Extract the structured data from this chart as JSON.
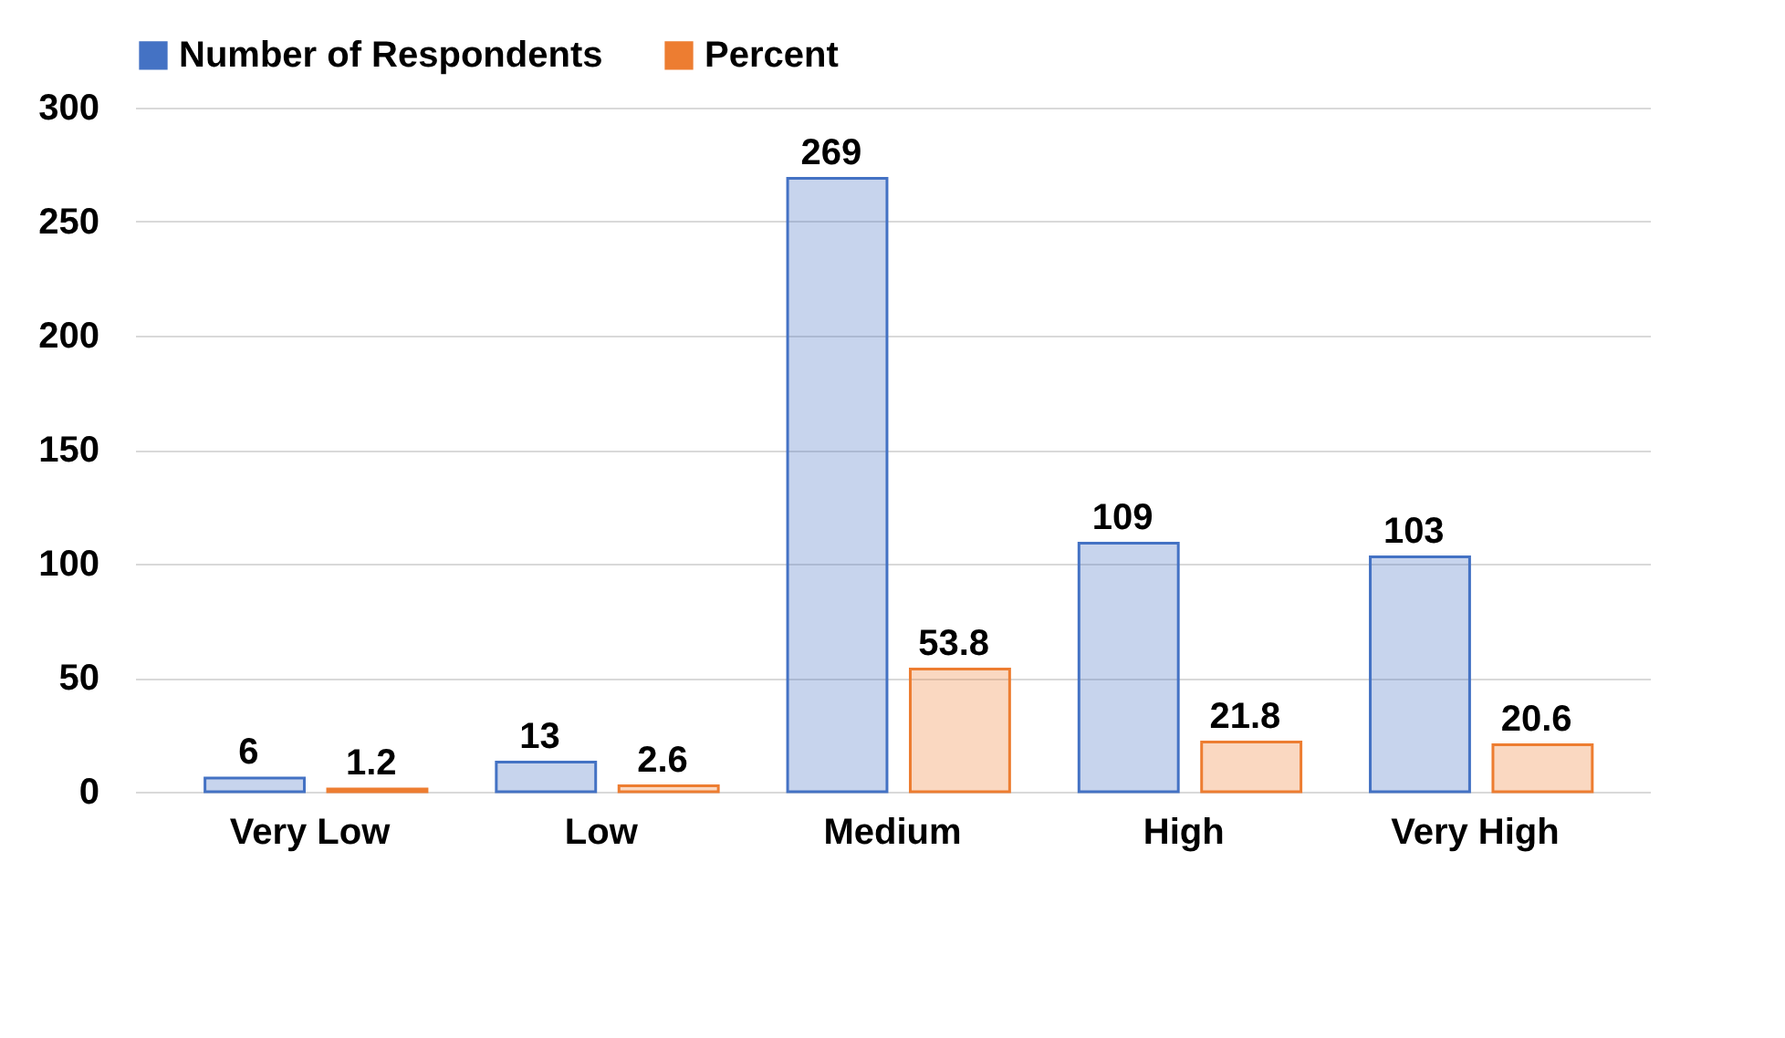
{
  "chart_data": {
    "type": "bar",
    "categories": [
      "Very Low",
      "Low",
      "Medium",
      "High",
      "Very High"
    ],
    "series": [
      {
        "name": "Number of Respondents",
        "color": "#4472c4",
        "values": [
          6,
          13,
          269,
          109,
          103
        ]
      },
      {
        "name": "Percent",
        "color": "#ed7d31",
        "values": [
          1.2,
          2.6,
          53.8,
          21.8,
          20.6
        ]
      }
    ],
    "ylim": [
      0,
      300
    ],
    "yticks": [
      0,
      50,
      100,
      150,
      200,
      250,
      300
    ],
    "grid": "y",
    "legend": "top",
    "data_labels": true
  }
}
